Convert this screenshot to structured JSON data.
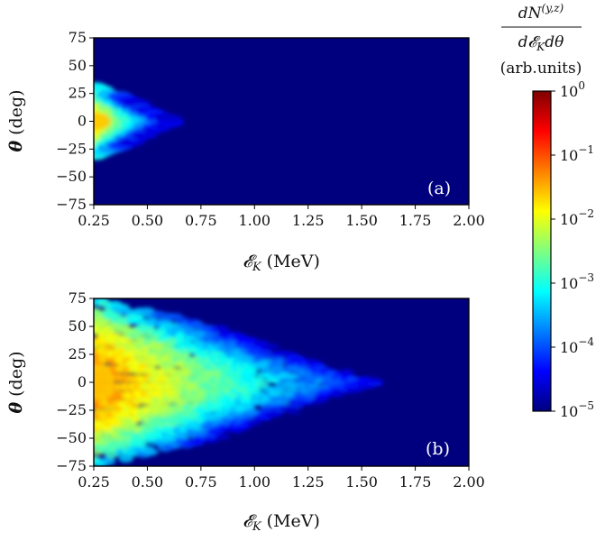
{
  "chart_data": [
    {
      "type": "heatmap",
      "panel_label": "(a)",
      "xlabel": "𝓔",
      "xlabel_sub": "K",
      "xlabel_unit": "(MeV)",
      "ylabel": "θ",
      "ylabel_unit": "(deg)",
      "xlim": [
        0.25,
        2.0
      ],
      "ylim": [
        -75,
        75
      ],
      "xticks": [
        "0.25",
        "0.50",
        "0.75",
        "1.00",
        "1.25",
        "1.50",
        "1.75",
        "2.00"
      ],
      "yticks": [
        "75",
        "50",
        "25",
        "0",
        "−25",
        "−50",
        "−75"
      ],
      "ytick_values": [
        75,
        50,
        25,
        0,
        -25,
        -50,
        -75
      ],
      "description_hint": "narrow cone, max energy ~0.62 MeV, angular spread ~±25 deg",
      "max_energy": 0.62,
      "max_angle": 25,
      "density_decay": 0.18
    },
    {
      "type": "heatmap",
      "panel_label": "(b)",
      "xlabel": "𝓔",
      "xlabel_sub": "K",
      "xlabel_unit": "(MeV)",
      "ylabel": "θ",
      "ylabel_unit": "(deg)",
      "xlim": [
        0.25,
        2.0
      ],
      "ylim": [
        -75,
        75
      ],
      "xticks": [
        "0.25",
        "0.50",
        "0.75",
        "1.00",
        "1.25",
        "1.50",
        "1.75",
        "2.00"
      ],
      "yticks": [
        "75",
        "50",
        "25",
        "0",
        "−25",
        "−50",
        "−75"
      ],
      "ytick_values": [
        75,
        50,
        25,
        0,
        -25,
        -50,
        -75
      ],
      "max_energy": 1.58,
      "max_angle": 65,
      "density_decay": 0.45
    }
  ],
  "colorbar": {
    "title_num": "dN",
    "title_sup": "(y,z)",
    "title_den": "d𝓔",
    "title_den_sub": "K",
    "title_den_rest": "dθ",
    "units": "(arb.units)",
    "scale": "log",
    "range": [
      1e-05,
      1
    ],
    "ticks": [
      {
        "base": "10",
        "exp": "0",
        "value": 0
      },
      {
        "base": "10",
        "exp": "−1",
        "value": -1
      },
      {
        "base": "10",
        "exp": "−2",
        "value": -2
      },
      {
        "base": "10",
        "exp": "−3",
        "value": -3
      },
      {
        "base": "10",
        "exp": "−4",
        "value": -4
      },
      {
        "base": "10",
        "exp": "−5",
        "value": -5
      }
    ],
    "colormap": "jet"
  }
}
